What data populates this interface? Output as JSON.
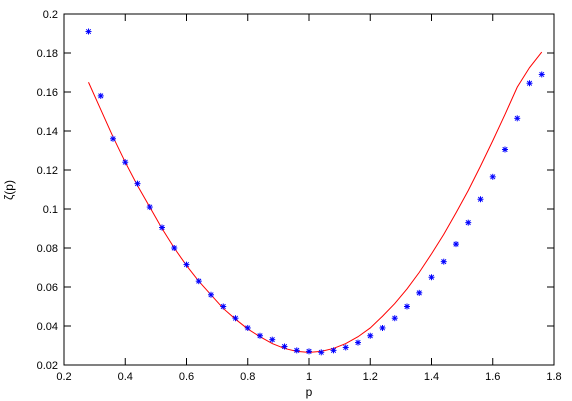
{
  "chart_data": {
    "type": "scatter",
    "title": "",
    "xlabel": "p",
    "ylabel": "ζ(p)",
    "xlim": [
      0.2,
      1.8
    ],
    "ylim": [
      0.02,
      0.2
    ],
    "xticks": [
      "0.2",
      "0.4",
      "0.6",
      "0.8",
      "1",
      "1.2",
      "1.4",
      "1.6",
      "1.8"
    ],
    "yticks": [
      "0.02",
      "0.04",
      "0.06",
      "0.08",
      "0.1",
      "0.12",
      "0.14",
      "0.16",
      "0.18",
      "0.2"
    ],
    "grid": false,
    "legend": "none",
    "series": [
      {
        "kind": "points",
        "marker": "asterisk",
        "color": "#0000ff",
        "x": [
          0.28,
          0.32,
          0.36,
          0.4,
          0.44,
          0.48,
          0.52,
          0.56,
          0.6,
          0.64,
          0.68,
          0.72,
          0.76,
          0.8,
          0.84,
          0.88,
          0.92,
          0.96,
          1.0,
          1.04,
          1.08,
          1.12,
          1.16,
          1.2,
          1.24,
          1.28,
          1.32,
          1.36,
          1.4,
          1.44,
          1.48,
          1.52,
          1.56,
          1.6,
          1.64,
          1.68,
          1.72,
          1.76
        ],
        "y": [
          0.191,
          0.158,
          0.136,
          0.124,
          0.113,
          0.101,
          0.0905,
          0.08,
          0.0715,
          0.063,
          0.056,
          0.05,
          0.044,
          0.039,
          0.035,
          0.033,
          0.0295,
          0.0275,
          0.027,
          0.0265,
          0.0275,
          0.029,
          0.0315,
          0.035,
          0.039,
          0.044,
          0.05,
          0.057,
          0.065,
          0.073,
          0.082,
          0.093,
          0.105,
          0.1165,
          0.1305,
          0.1465,
          0.1645,
          0.169
        ]
      },
      {
        "kind": "line",
        "color": "#ff0000",
        "x": [
          0.28,
          0.32,
          0.36,
          0.4,
          0.44,
          0.48,
          0.52,
          0.56,
          0.6,
          0.64,
          0.68,
          0.72,
          0.76,
          0.8,
          0.84,
          0.88,
          0.92,
          0.96,
          1.0,
          1.04,
          1.08,
          1.12,
          1.16,
          1.2,
          1.24,
          1.28,
          1.32,
          1.36,
          1.4,
          1.44,
          1.48,
          1.52,
          1.56,
          1.6,
          1.64,
          1.68,
          1.72,
          1.76
        ],
        "y": [
          0.165,
          0.151,
          0.137,
          0.124,
          0.112,
          0.101,
          0.09,
          0.08,
          0.071,
          0.063,
          0.056,
          0.049,
          0.0435,
          0.0385,
          0.0345,
          0.031,
          0.0285,
          0.027,
          0.0265,
          0.027,
          0.0285,
          0.031,
          0.0345,
          0.039,
          0.045,
          0.0515,
          0.059,
          0.0675,
          0.077,
          0.087,
          0.098,
          0.1095,
          0.122,
          0.135,
          0.1485,
          0.1625,
          0.1725,
          0.1805
        ]
      }
    ]
  }
}
